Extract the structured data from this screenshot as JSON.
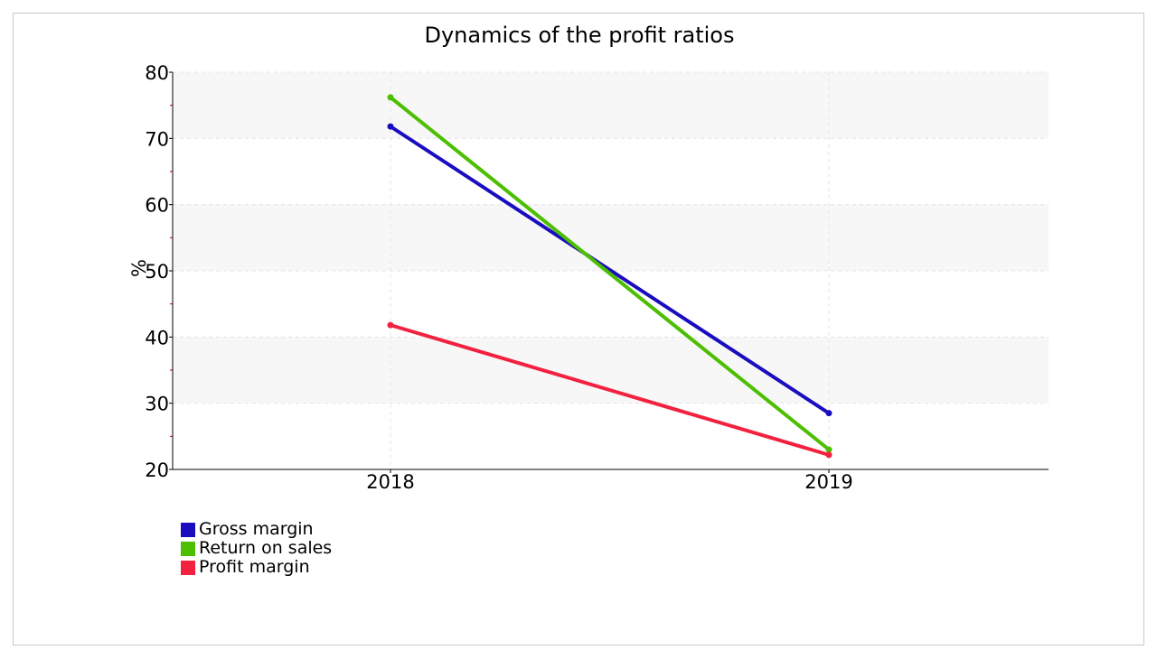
{
  "chart_data": {
    "type": "line",
    "title": "Dynamics of the profit ratios",
    "xlabel": "",
    "ylabel": "%",
    "x": [
      "2018",
      "2019"
    ],
    "ylim": [
      20,
      80
    ],
    "yticks": [
      "20",
      "30",
      "40",
      "50",
      "60",
      "70",
      "80"
    ],
    "grid": true,
    "legend_position": "bottom-left",
    "series": [
      {
        "name": "Gross margin",
        "color": "#1a0dbf",
        "values": [
          71.8,
          28.5
        ]
      },
      {
        "name": "Return on sales",
        "color": "#4cbf00",
        "values": [
          76.2,
          23.0
        ]
      },
      {
        "name": "Profit margin",
        "color": "#f2213f",
        "values": [
          41.8,
          22.2
        ]
      }
    ]
  }
}
